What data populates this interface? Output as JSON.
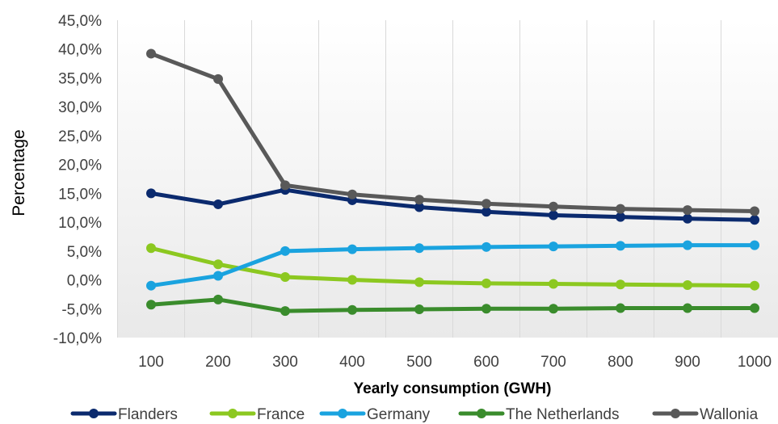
{
  "chart_data": {
    "type": "line",
    "xlabel": "Yearly consumption (GWH)",
    "ylabel": "Percentage",
    "categories": [
      "100",
      "200",
      "300",
      "400",
      "500",
      "600",
      "700",
      "800",
      "900",
      "1000"
    ],
    "ylim": [
      -10,
      45
    ],
    "yticks": [
      "-10,0%",
      "-5,0%",
      "0,0%",
      "5,0%",
      "10,0%",
      "15,0%",
      "20,0%",
      "25,0%",
      "30,0%",
      "35,0%",
      "40,0%",
      "45,0%"
    ],
    "grid": "vertical",
    "legend_position": "bottom",
    "series": [
      {
        "name": "Flanders",
        "color": "#0b2a6e",
        "values": [
          15.0,
          13.1,
          15.6,
          13.8,
          12.6,
          11.8,
          11.2,
          10.9,
          10.6,
          10.4
        ]
      },
      {
        "name": "France",
        "color": "#8cc820",
        "values": [
          5.5,
          2.7,
          0.5,
          0.0,
          -0.4,
          -0.6,
          -0.7,
          -0.8,
          -0.9,
          -1.0
        ]
      },
      {
        "name": "Germany",
        "color": "#1aa3df",
        "values": [
          -1.0,
          0.7,
          5.0,
          5.3,
          5.5,
          5.7,
          5.8,
          5.9,
          6.0,
          6.0
        ]
      },
      {
        "name": "The Netherlands",
        "color": "#3a8c2c",
        "values": [
          -4.3,
          -3.4,
          -5.4,
          -5.2,
          -5.1,
          -5.0,
          -5.0,
          -4.9,
          -4.9,
          -4.9
        ]
      },
      {
        "name": "Wallonia",
        "color": "#595959",
        "values": [
          39.2,
          34.8,
          16.4,
          14.8,
          13.9,
          13.2,
          12.7,
          12.3,
          12.1,
          11.9
        ]
      }
    ]
  }
}
